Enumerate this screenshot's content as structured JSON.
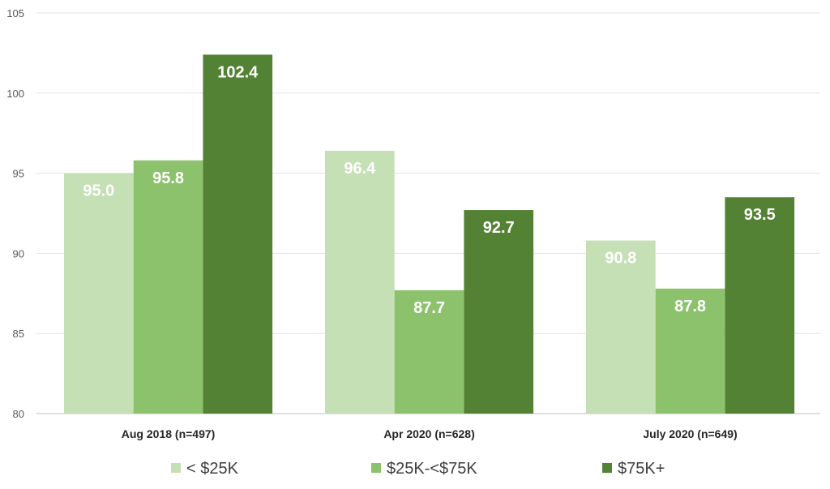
{
  "chart_data": {
    "type": "bar",
    "categories": [
      "Aug 2018 (n=497)",
      "Apr 2020 (n=628)",
      "July 2020 (n=649)"
    ],
    "series": [
      {
        "name": "< $25K",
        "values": [
          95.0,
          96.4,
          90.8
        ],
        "color": "#c5e0b4"
      },
      {
        "name": "$25K-<$75K",
        "values": [
          95.8,
          87.7,
          87.8
        ],
        "color": "#8dc26d"
      },
      {
        "name": "$75K+",
        "values": [
          102.4,
          92.7,
          93.5
        ],
        "color": "#548235"
      }
    ],
    "data_labels": [
      [
        "95.0",
        "95.8",
        "102.4"
      ],
      [
        "96.4",
        "87.7",
        "92.7"
      ],
      [
        "90.8",
        "87.8",
        "93.5"
      ]
    ],
    "ylim": [
      80,
      105
    ],
    "yticks": [
      "80",
      "85",
      "90",
      "95",
      "100",
      "105"
    ],
    "grid": true,
    "legend_position": "bottom",
    "title": "",
    "xlabel": "",
    "ylabel": ""
  }
}
